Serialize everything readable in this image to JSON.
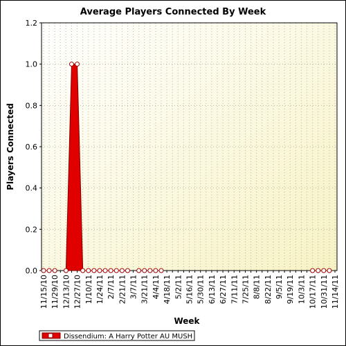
{
  "chart_data": {
    "type": "area",
    "title": "Average Players Connected By Week",
    "x_label": "Week",
    "y_label": "Players Connected",
    "categories": [
      "11/15/10",
      null,
      "11/29/10",
      null,
      "12/13/10",
      null,
      "12/27/10",
      null,
      "1/10/11",
      null,
      "1/24/11",
      null,
      "2/7/11",
      null,
      "2/21/11",
      null,
      "3/7/11",
      null,
      "3/21/11",
      null,
      "4/4/11",
      null,
      "4/18/11",
      null,
      "5/2/11",
      null,
      "5/16/11",
      null,
      "5/30/11",
      null,
      "6/13/11",
      null,
      "6/27/11",
      null,
      "7/11/11",
      null,
      "7/25/11",
      null,
      "8/8/11",
      null,
      "8/22/11",
      null,
      "9/5/11",
      null,
      "9/19/11",
      null,
      "10/3/11",
      null,
      "10/17/11",
      null,
      "10/31/11",
      null,
      "11/14/11"
    ],
    "series": [
      {
        "name": "Dissendium: A Harry Potter AU MUSH",
        "color": "#e00000",
        "values": [
          0,
          0,
          0,
          null,
          0,
          1,
          1,
          0,
          0,
          0,
          0,
          0,
          0,
          0,
          0,
          0,
          null,
          0,
          0,
          0,
          0,
          0,
          null,
          null,
          null,
          null,
          null,
          null,
          null,
          null,
          null,
          null,
          null,
          null,
          null,
          null,
          null,
          null,
          null,
          null,
          null,
          null,
          null,
          null,
          null,
          null,
          null,
          null,
          0,
          0,
          0,
          0,
          null
        ]
      }
    ],
    "ylim": [
      0,
      1.2
    ],
    "yticks": [
      {
        "value": 0,
        "label": "0.0"
      },
      0.2,
      0.4,
      0.6,
      0.8,
      {
        "value": 1,
        "label": "1.0"
      },
      1.2
    ],
    "grid": true
  }
}
